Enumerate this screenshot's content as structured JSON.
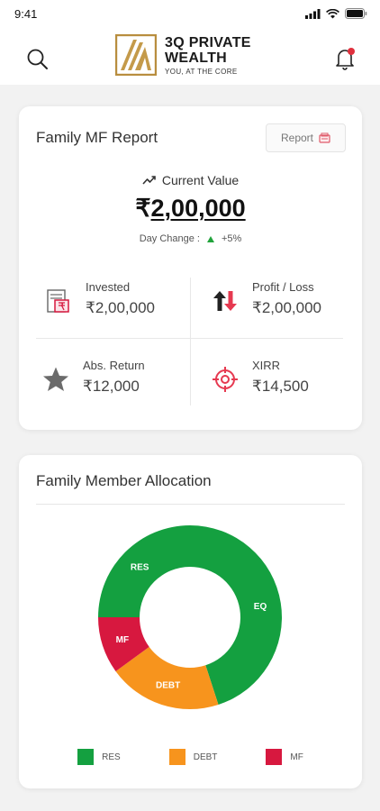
{
  "status": {
    "time": "9:41"
  },
  "brand": {
    "name_line1": "3Q PRIVATE",
    "name_line2": "WEALTH",
    "tagline": "YOU, AT THE CORE"
  },
  "icons": {
    "search": "search-icon",
    "bell": "bell-icon",
    "report": "pdf-icon",
    "invested": "invoice-icon",
    "profit_loss": "up-down-arrows-icon",
    "abs_return": "star-icon",
    "xirr": "target-icon"
  },
  "report_card": {
    "title": "Family MF Report",
    "report_button": "Report",
    "current_value_label": "Current Value",
    "currency_symbol": "₹",
    "current_value": "2,00,000",
    "day_change_label": "Day Change :",
    "day_change_value": "+5%",
    "stats": {
      "invested": {
        "label": "Invested",
        "value": "₹2,00,000"
      },
      "profit_loss": {
        "label": "Profit / Loss",
        "value": "₹2,00,000"
      },
      "abs_return": {
        "label": "Abs. Return",
        "value": "₹12,000"
      },
      "xirr": {
        "label": "XIRR",
        "value": "₹14,500"
      }
    }
  },
  "allocation_card": {
    "title": "Family Member Allocation"
  },
  "colors": {
    "res": "#14a040",
    "debt": "#f7941d",
    "mf": "#d7183f",
    "accent_green": "#21a33b"
  },
  "chart_data": {
    "type": "pie",
    "donut": true,
    "slices": [
      {
        "label": "EQ",
        "value": 45,
        "color": "#14a040"
      },
      {
        "label": "DEBT",
        "value": 20,
        "color": "#f7941d"
      },
      {
        "label": "MF",
        "value": 10,
        "color": "#d7183f"
      },
      {
        "label": "RES",
        "value": 25,
        "color": "#14a040"
      }
    ],
    "legend": [
      {
        "name": "RES",
        "color": "#14a040"
      },
      {
        "name": "DEBT",
        "color": "#f7941d"
      },
      {
        "name": "MF",
        "color": "#d7183f"
      }
    ],
    "legend_position": "bottom"
  }
}
